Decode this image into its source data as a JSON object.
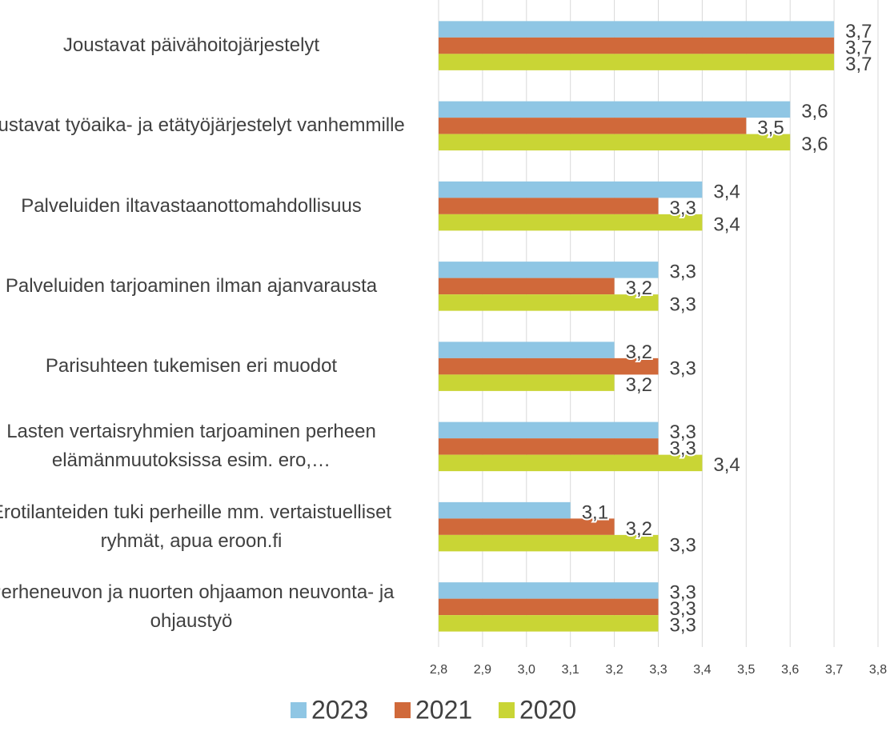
{
  "chart_data": {
    "type": "bar",
    "orientation": "horizontal",
    "categories": [
      "Joustavat päivähoitojärjestelyt",
      "Joustavat työaika- ja etätyöjärjestelyt vanhemmille",
      "Palveluiden iltavastaanottomahdollisuus",
      "Palveluiden tarjoaminen ilman ajanvarausta",
      "Parisuhteen tukemisen eri muodot",
      "Lasten vertaisryhmien tarjoaminen perheen elämänmuutoksissa esim. ero,…",
      "Erotilanteiden tuki perheille mm. vertaistuelliset ryhmät, apua eroon.fi",
      "Perheneuvon ja nuorten ohjaamon neuvonta- ja ohjaustyö"
    ],
    "series": [
      {
        "name": "2023",
        "color": "#8fc6e4",
        "values": [
          3.7,
          3.6,
          3.4,
          3.3,
          3.2,
          3.3,
          3.1,
          3.3
        ],
        "value_labels": [
          "3,7",
          "3,6",
          "3,4",
          "3,3",
          "3,2",
          "3,3",
          "3,1",
          "3,3"
        ]
      },
      {
        "name": "2021",
        "color": "#d0693a",
        "values": [
          3.7,
          3.5,
          3.3,
          3.2,
          3.3,
          3.3,
          3.2,
          3.3
        ],
        "value_labels": [
          "3,7",
          "3,5",
          "3,3",
          "3,2",
          "3,3",
          "3,3",
          "3,2",
          "3,3"
        ]
      },
      {
        "name": "2020",
        "color": "#c9d535",
        "values": [
          3.7,
          3.6,
          3.4,
          3.3,
          3.2,
          3.4,
          3.3,
          3.3
        ],
        "value_labels": [
          "3,7",
          "3,6",
          "3,4",
          "3,3",
          "3,2",
          "3,4",
          "3,3",
          "3,3"
        ]
      }
    ],
    "xlim": [
      2.8,
      3.8
    ],
    "xticks": [
      {
        "value": 2.8,
        "label": "2,8"
      },
      {
        "value": 2.9,
        "label": "2,9"
      },
      {
        "value": 3.0,
        "label": "3,0"
      },
      {
        "value": 3.1,
        "label": "3,1"
      },
      {
        "value": 3.2,
        "label": "3,2"
      },
      {
        "value": 3.3,
        "label": "3,3"
      },
      {
        "value": 3.4,
        "label": "3,4"
      },
      {
        "value": 3.5,
        "label": "3,5"
      },
      {
        "value": 3.6,
        "label": "3,6"
      },
      {
        "value": 3.7,
        "label": "3,7"
      },
      {
        "value": 3.8,
        "label": "3,8"
      }
    ],
    "grid": true,
    "legend": "bottom"
  }
}
